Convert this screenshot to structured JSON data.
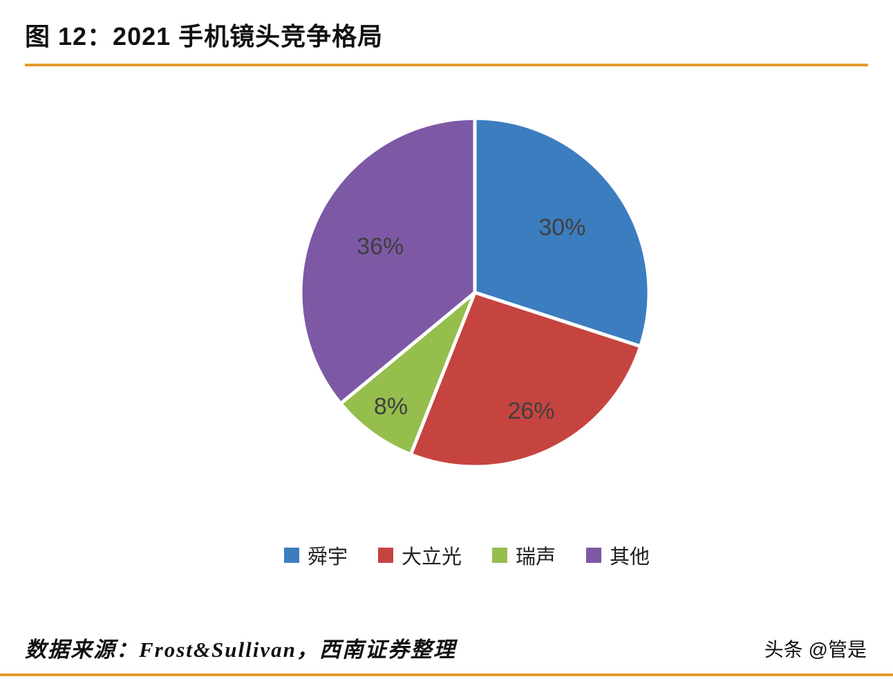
{
  "header": {
    "title": "图 12：2021 手机镜头竞争格局"
  },
  "footer": {
    "source": "数据来源：Frost&Sullivan，西南证券整理",
    "watermark": "头条 @管是"
  },
  "theme": {
    "accent_line_color": "#E49B2D",
    "label_text_color": "#3f3f3f"
  },
  "chart_data": {
    "type": "pie",
    "title": "2021 手机镜头竞争格局",
    "categories": [
      "舜宇",
      "大立光",
      "瑞声",
      "其他"
    ],
    "values": [
      30,
      26,
      8,
      36
    ],
    "labels": [
      "30%",
      "26%",
      "8%",
      "36%"
    ],
    "colors": [
      "#3C7DC0",
      "#C64440",
      "#95BE4D",
      "#7D59A5"
    ],
    "start_angle_deg": 0,
    "direction": "clockwise",
    "legend_position": "bottom",
    "label_format": "percent",
    "label_radius": [
      0.62,
      0.76,
      0.82,
      0.6
    ]
  }
}
